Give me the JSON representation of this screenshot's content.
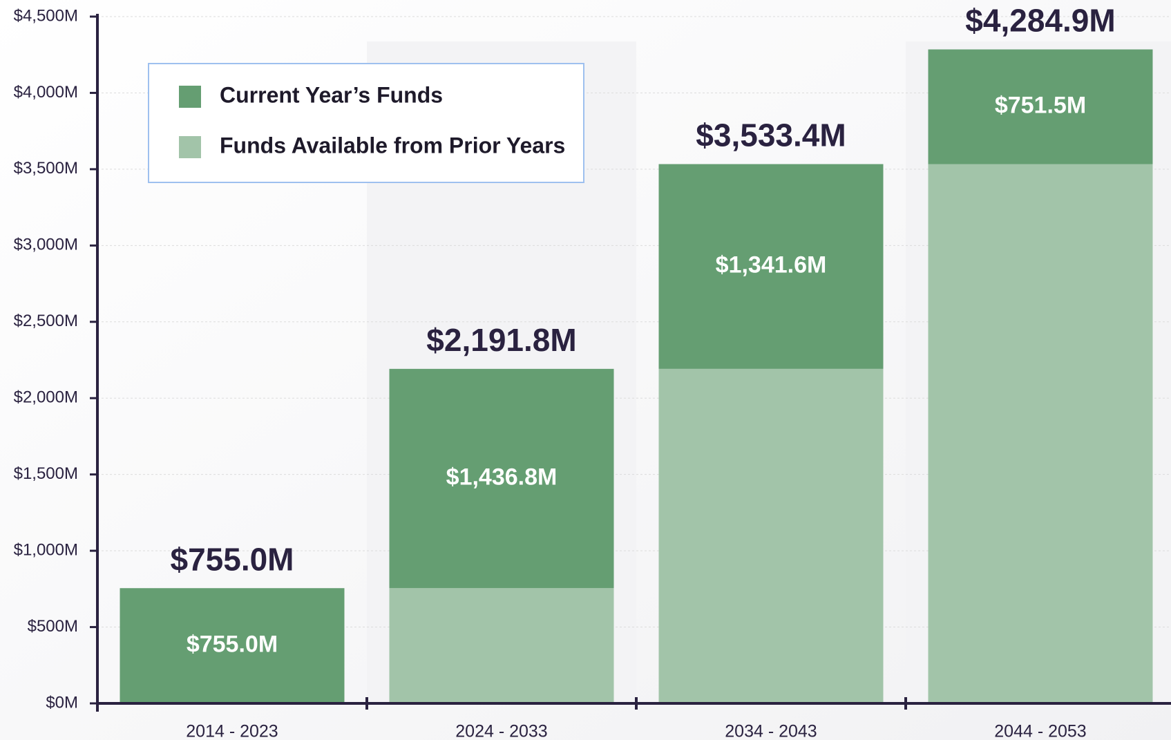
{
  "chart_data": {
    "type": "stacked_bar",
    "categories": [
      "2014 - 2023",
      "2024 - 2033",
      "2034 - 2043",
      "2044 - 2053"
    ],
    "series": [
      {
        "name": "Current Year’s Funds",
        "color": "#659e72",
        "values": [
          755.0,
          1436.8,
          1341.6,
          751.5
        ],
        "value_labels": [
          "$755.0M",
          "$1,436.8M",
          "$1,341.6M",
          "$751.5M"
        ]
      },
      {
        "name": "Funds Available from Prior Years",
        "color": "#a2c4a9",
        "values": [
          0,
          755.0,
          2191.8,
          3533.4
        ]
      }
    ],
    "totals": {
      "values": [
        755.0,
        2191.8,
        3533.4,
        4284.9
      ],
      "value_labels": [
        "$755.0M",
        "$2,191.8M",
        "$3,533.4M",
        "$4,284.9M"
      ]
    },
    "ylim": [
      0,
      4500
    ],
    "yticks": [
      {
        "value": 0,
        "label": "$0M"
      },
      {
        "value": 500,
        "label": "$500M"
      },
      {
        "value": 1000,
        "label": "$1,000M"
      },
      {
        "value": 1500,
        "label": "$1,500M"
      },
      {
        "value": 2000,
        "label": "$2,000M"
      },
      {
        "value": 2500,
        "label": "$2,500M"
      },
      {
        "value": 3000,
        "label": "$3,000M"
      },
      {
        "value": 3500,
        "label": "$3,500M"
      },
      {
        "value": 4000,
        "label": "$4,000M"
      },
      {
        "value": 4500,
        "label": "$4,500M"
      }
    ],
    "grid": true,
    "legend": "upper left"
  }
}
